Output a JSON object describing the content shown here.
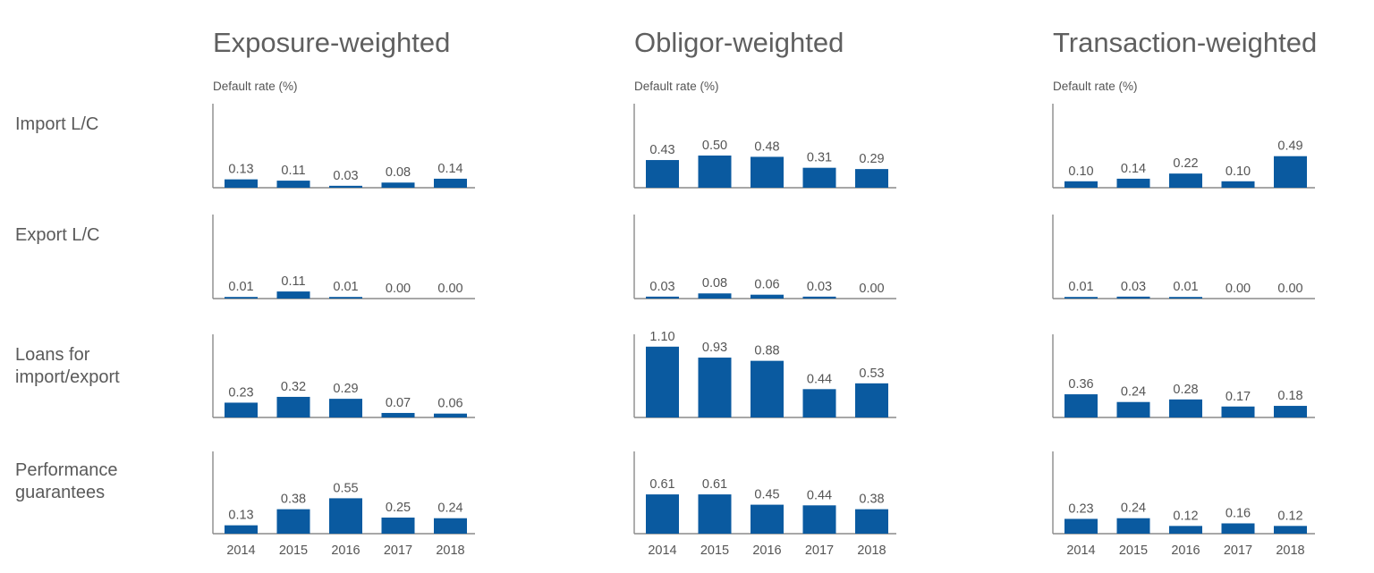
{
  "chart_data": {
    "type": "bar",
    "ylabel": "Default rate (%)",
    "categories": [
      "2014",
      "2015",
      "2016",
      "2017",
      "2018"
    ],
    "bar_color": "#0a5aa0",
    "columns": [
      {
        "title": "Exposure-weighted",
        "ylabel": "Default rate (%)"
      },
      {
        "title": "Obligor-weighted",
        "ylabel": "Default rate (%)"
      },
      {
        "title": "Transaction-weighted",
        "ylabel": "Default rate (%)"
      }
    ],
    "rows": [
      {
        "label_lines": [
          "Import L/C"
        ],
        "series": [
          {
            "values": [
              0.13,
              0.11,
              0.03,
              0.08,
              0.14
            ],
            "labels": [
              "0.13",
              "0.11",
              "0.03",
              "0.08",
              "0.14"
            ]
          },
          {
            "values": [
              0.43,
              0.5,
              0.48,
              0.31,
              0.29
            ],
            "labels": [
              "0.43",
              "0.50",
              "0.48",
              "0.31",
              "0.29"
            ]
          },
          {
            "values": [
              0.1,
              0.14,
              0.22,
              0.1,
              0.49
            ],
            "labels": [
              "0.10",
              "0.14",
              "0.22",
              "0.10",
              "0.49"
            ]
          }
        ]
      },
      {
        "label_lines": [
          "Export L/C"
        ],
        "series": [
          {
            "values": [
              0.01,
              0.11,
              0.01,
              0.0,
              0.0
            ],
            "labels": [
              "0.01",
              "0.11",
              "0.01",
              "0.00",
              "0.00"
            ]
          },
          {
            "values": [
              0.03,
              0.08,
              0.06,
              0.03,
              0.0
            ],
            "labels": [
              "0.03",
              "0.08",
              "0.06",
              "0.03",
              "0.00"
            ]
          },
          {
            "values": [
              0.01,
              0.03,
              0.01,
              0.0,
              0.0
            ],
            "labels": [
              "0.01",
              "0.03",
              "0.01",
              "0.00",
              "0.00"
            ]
          }
        ]
      },
      {
        "label_lines": [
          "Loans for",
          "import/export"
        ],
        "series": [
          {
            "values": [
              0.23,
              0.32,
              0.29,
              0.07,
              0.06
            ],
            "labels": [
              "0.23",
              "0.32",
              "0.29",
              "0.07",
              "0.06"
            ]
          },
          {
            "values": [
              1.1,
              0.93,
              0.88,
              0.44,
              0.53
            ],
            "labels": [
              "1.10",
              "0.93",
              "0.88",
              "0.44",
              "0.53"
            ]
          },
          {
            "values": [
              0.36,
              0.24,
              0.28,
              0.17,
              0.18
            ],
            "labels": [
              "0.36",
              "0.24",
              "0.28",
              "0.17",
              "0.18"
            ]
          }
        ]
      },
      {
        "label_lines": [
          "Performance",
          "guarantees"
        ],
        "series": [
          {
            "values": [
              0.13,
              0.38,
              0.55,
              0.25,
              0.24
            ],
            "labels": [
              "0.13",
              "0.38",
              "0.55",
              "0.25",
              "0.24"
            ]
          },
          {
            "values": [
              0.61,
              0.61,
              0.45,
              0.44,
              0.38
            ],
            "labels": [
              "0.61",
              "0.61",
              "0.45",
              "0.44",
              "0.38"
            ]
          },
          {
            "values": [
              0.23,
              0.24,
              0.12,
              0.16,
              0.12
            ],
            "labels": [
              "0.23",
              "0.24",
              "0.12",
              "0.16",
              "0.12"
            ]
          }
        ]
      }
    ]
  }
}
